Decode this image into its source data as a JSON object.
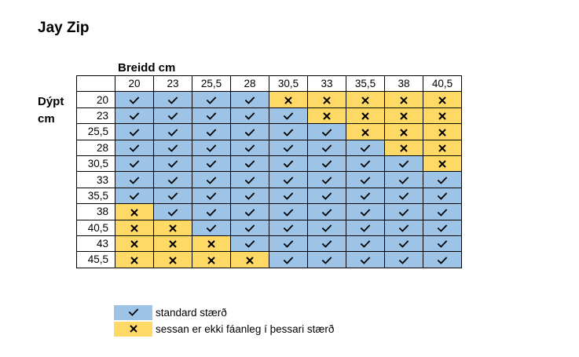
{
  "title": "Jay Zip",
  "col_caption": "Breidd cm",
  "row_caption": [
    "Dýpt",
    "cm"
  ],
  "colors": {
    "ok": "#9dc3e6",
    "no": "#ffd966"
  },
  "columns": [
    "20",
    "23",
    "25,5",
    "28",
    "30,5",
    "33",
    "35,5",
    "38",
    "40,5"
  ],
  "rows": [
    {
      "label": "20",
      "cells": [
        "ok",
        "ok",
        "ok",
        "ok",
        "no",
        "no",
        "no",
        "no",
        "no"
      ]
    },
    {
      "label": "23",
      "cells": [
        "ok",
        "ok",
        "ok",
        "ok",
        "ok",
        "no",
        "no",
        "no",
        "no"
      ]
    },
    {
      "label": "25,5",
      "cells": [
        "ok",
        "ok",
        "ok",
        "ok",
        "ok",
        "ok",
        "no",
        "no",
        "no"
      ]
    },
    {
      "label": "28",
      "cells": [
        "ok",
        "ok",
        "ok",
        "ok",
        "ok",
        "ok",
        "ok",
        "no",
        "no"
      ]
    },
    {
      "label": "30,5",
      "cells": [
        "ok",
        "ok",
        "ok",
        "ok",
        "ok",
        "ok",
        "ok",
        "ok",
        "no"
      ]
    },
    {
      "label": "33",
      "cells": [
        "ok",
        "ok",
        "ok",
        "ok",
        "ok",
        "ok",
        "ok",
        "ok",
        "ok"
      ]
    },
    {
      "label": "35,5",
      "cells": [
        "ok",
        "ok",
        "ok",
        "ok",
        "ok",
        "ok",
        "ok",
        "ok",
        "ok"
      ]
    },
    {
      "label": "38",
      "cells": [
        "no",
        "ok",
        "ok",
        "ok",
        "ok",
        "ok",
        "ok",
        "ok",
        "ok"
      ]
    },
    {
      "label": "40,5",
      "cells": [
        "no",
        "no",
        "ok",
        "ok",
        "ok",
        "ok",
        "ok",
        "ok",
        "ok"
      ]
    },
    {
      "label": "43",
      "cells": [
        "no",
        "no",
        "no",
        "ok",
        "ok",
        "ok",
        "ok",
        "ok",
        "ok"
      ]
    },
    {
      "label": "45,5",
      "cells": [
        "no",
        "no",
        "no",
        "no",
        "ok",
        "ok",
        "ok",
        "ok",
        "ok"
      ]
    }
  ],
  "legend": [
    {
      "status": "ok",
      "icon": "check-icon",
      "text": "standard stærð"
    },
    {
      "status": "no",
      "icon": "cross-icon",
      "text": "sessan er ekki fáanleg í þessari stærð"
    }
  ]
}
